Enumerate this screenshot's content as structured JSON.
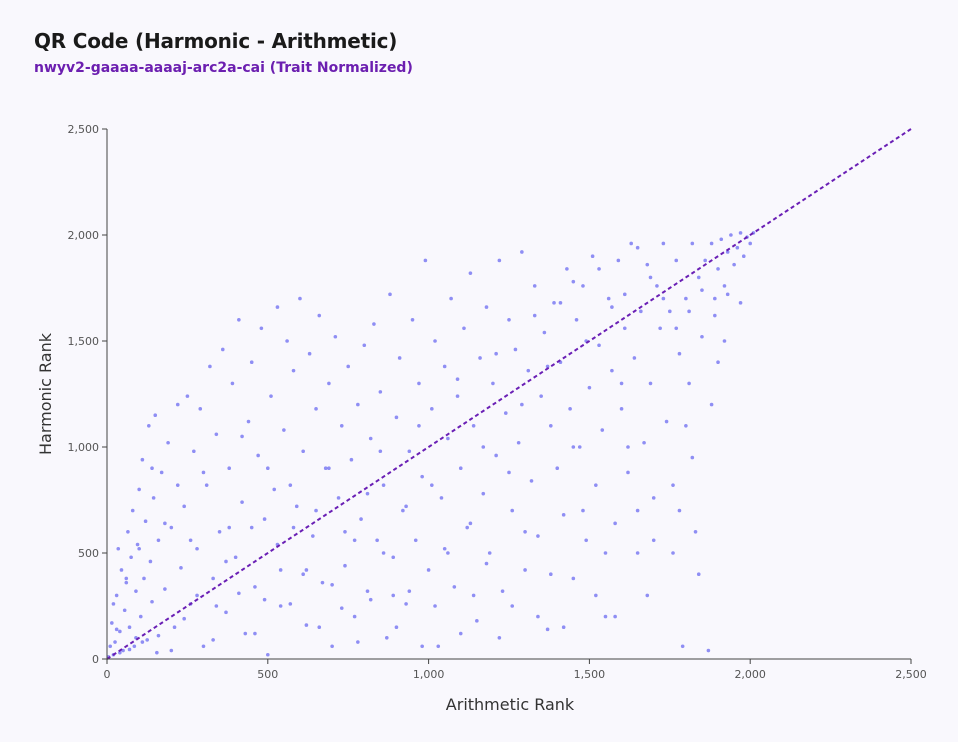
{
  "title": "QR Code (Harmonic - Arithmetic)",
  "subtitle": "nwyv2-gaaaa-aaaaj-arc2a-cai (Trait Normalized)",
  "colors": {
    "points": "#6b6bf0",
    "trend_line": "#6a1fb5",
    "axis": "#444444",
    "subtitle": "#6c1fb0"
  },
  "chart_data": {
    "type": "scatter",
    "xlabel": "Arithmetic Rank",
    "ylabel": "Harmonic Rank",
    "xlim": [
      0,
      2500
    ],
    "ylim": [
      0,
      2500
    ],
    "x_ticks": [
      "0",
      "500",
      "1,000",
      "1,500",
      "2,000",
      "2,500"
    ],
    "y_ticks": [
      "0",
      "500",
      "1,000",
      "1,500",
      "2,000",
      "2,500"
    ],
    "grid": false,
    "reference_line": {
      "from": [
        0,
        0
      ],
      "to": [
        2500,
        2500
      ],
      "style": "dashed"
    },
    "points_note": "~3000 points; representative sample",
    "points": [
      [
        5,
        10
      ],
      [
        15,
        170
      ],
      [
        20,
        260
      ],
      [
        25,
        80
      ],
      [
        30,
        300
      ],
      [
        35,
        520
      ],
      [
        40,
        130
      ],
      [
        45,
        420
      ],
      [
        50,
        40
      ],
      [
        55,
        230
      ],
      [
        60,
        360
      ],
      [
        65,
        600
      ],
      [
        70,
        150
      ],
      [
        75,
        480
      ],
      [
        80,
        700
      ],
      [
        85,
        60
      ],
      [
        90,
        320
      ],
      [
        95,
        540
      ],
      [
        100,
        800
      ],
      [
        105,
        200
      ],
      [
        110,
        940
      ],
      [
        115,
        380
      ],
      [
        120,
        650
      ],
      [
        125,
        90
      ],
      [
        130,
        1100
      ],
      [
        135,
        460
      ],
      [
        140,
        270
      ],
      [
        145,
        760
      ],
      [
        150,
        1150
      ],
      [
        155,
        30
      ],
      [
        160,
        560
      ],
      [
        170,
        880
      ],
      [
        180,
        330
      ],
      [
        190,
        1020
      ],
      [
        200,
        620
      ],
      [
        210,
        150
      ],
      [
        220,
        1200
      ],
      [
        230,
        430
      ],
      [
        240,
        720
      ],
      [
        250,
        1240
      ],
      [
        260,
        260
      ],
      [
        270,
        980
      ],
      [
        280,
        520
      ],
      [
        290,
        1180
      ],
      [
        300,
        60
      ],
      [
        310,
        820
      ],
      [
        320,
        1380
      ],
      [
        330,
        380
      ],
      [
        340,
        1060
      ],
      [
        350,
        600
      ],
      [
        360,
        1460
      ],
      [
        370,
        220
      ],
      [
        380,
        900
      ],
      [
        390,
        1300
      ],
      [
        400,
        480
      ],
      [
        410,
        1600
      ],
      [
        420,
        740
      ],
      [
        430,
        120
      ],
      [
        440,
        1120
      ],
      [
        450,
        1400
      ],
      [
        460,
        340
      ],
      [
        470,
        960
      ],
      [
        480,
        1560
      ],
      [
        490,
        660
      ],
      [
        500,
        20
      ],
      [
        510,
        1240
      ],
      [
        520,
        800
      ],
      [
        530,
        1660
      ],
      [
        540,
        420
      ],
      [
        550,
        1080
      ],
      [
        560,
        1500
      ],
      [
        570,
        260
      ],
      [
        580,
        1360
      ],
      [
        590,
        720
      ],
      [
        600,
        1700
      ],
      [
        610,
        980
      ],
      [
        620,
        160
      ],
      [
        630,
        1440
      ],
      [
        640,
        580
      ],
      [
        650,
        1180
      ],
      [
        660,
        1620
      ],
      [
        670,
        360
      ],
      [
        680,
        900
      ],
      [
        690,
        1300
      ],
      [
        700,
        60
      ],
      [
        710,
        1520
      ],
      [
        720,
        760
      ],
      [
        730,
        1100
      ],
      [
        740,
        440
      ],
      [
        750,
        1380
      ],
      [
        760,
        940
      ],
      [
        770,
        200
      ],
      [
        780,
        1200
      ],
      [
        790,
        660
      ],
      [
        800,
        1480
      ],
      [
        810,
        320
      ],
      [
        820,
        1040
      ],
      [
        830,
        1580
      ],
      [
        840,
        560
      ],
      [
        850,
        1260
      ],
      [
        860,
        820
      ],
      [
        870,
        100
      ],
      [
        880,
        1720
      ],
      [
        890,
        480
      ],
      [
        900,
        1140
      ],
      [
        910,
        1420
      ],
      [
        920,
        700
      ],
      [
        930,
        260
      ],
      [
        940,
        980
      ],
      [
        950,
        1600
      ],
      [
        960,
        560
      ],
      [
        970,
        1300
      ],
      [
        980,
        860
      ],
      [
        990,
        1880
      ],
      [
        1000,
        420
      ],
      [
        1010,
        1180
      ],
      [
        1020,
        1500
      ],
      [
        1030,
        60
      ],
      [
        1040,
        760
      ],
      [
        1050,
        1380
      ],
      [
        1060,
        1040
      ],
      [
        1070,
        1700
      ],
      [
        1080,
        340
      ],
      [
        1090,
        1240
      ],
      [
        1100,
        900
      ],
      [
        1110,
        1560
      ],
      [
        1120,
        620
      ],
      [
        1130,
        1820
      ],
      [
        1140,
        1100
      ],
      [
        1150,
        180
      ],
      [
        1160,
        1420
      ],
      [
        1170,
        780
      ],
      [
        1180,
        1660
      ],
      [
        1190,
        500
      ],
      [
        1200,
        1300
      ],
      [
        1210,
        960
      ],
      [
        1220,
        1880
      ],
      [
        1230,
        320
      ],
      [
        1240,
        1160
      ],
      [
        1250,
        1600
      ],
      [
        1260,
        700
      ],
      [
        1270,
        1460
      ],
      [
        1280,
        1020
      ],
      [
        1290,
        1920
      ],
      [
        1300,
        420
      ],
      [
        1310,
        1360
      ],
      [
        1320,
        840
      ],
      [
        1330,
        1760
      ],
      [
        1340,
        580
      ],
      [
        1350,
        1240
      ],
      [
        1360,
        1540
      ],
      [
        1370,
        140
      ],
      [
        1380,
        1100
      ],
      [
        1390,
        1680
      ],
      [
        1400,
        900
      ],
      [
        1410,
        1400
      ],
      [
        1420,
        680
      ],
      [
        1430,
        1840
      ],
      [
        1440,
        1180
      ],
      [
        1450,
        380
      ],
      [
        1460,
        1600
      ],
      [
        1470,
        1000
      ],
      [
        1480,
        1760
      ],
      [
        1490,
        560
      ],
      [
        1500,
        1280
      ],
      [
        1510,
        1900
      ],
      [
        1520,
        820
      ],
      [
        1530,
        1480
      ],
      [
        1540,
        1080
      ],
      [
        1550,
        200
      ],
      [
        1560,
        1700
      ],
      [
        1570,
        1360
      ],
      [
        1580,
        640
      ],
      [
        1590,
        1880
      ],
      [
        1600,
        1180
      ],
      [
        1610,
        1560
      ],
      [
        1620,
        880
      ],
      [
        1630,
        1960
      ],
      [
        1640,
        1420
      ],
      [
        1650,
        500
      ],
      [
        1660,
        1640
      ],
      [
        1670,
        1020
      ],
      [
        1680,
        1860
      ],
      [
        1690,
        1300
      ],
      [
        1700,
        760
      ],
      [
        1710,
        1760
      ],
      [
        1720,
        1560
      ],
      [
        1730,
        1960
      ],
      [
        1740,
        1120
      ],
      [
        1750,
        1640
      ],
      [
        1760,
        820
      ],
      [
        1770,
        1880
      ],
      [
        1780,
        1440
      ],
      [
        1790,
        60
      ],
      [
        1800,
        1700
      ],
      [
        1810,
        1300
      ],
      [
        1820,
        1960
      ],
      [
        1830,
        600
      ],
      [
        1840,
        1800
      ],
      [
        1850,
        1520
      ],
      [
        1860,
        1880
      ],
      [
        1870,
        40
      ],
      [
        1880,
        1960
      ],
      [
        1890,
        1700
      ],
      [
        1900,
        1840
      ],
      [
        1910,
        1980
      ],
      [
        1920,
        1760
      ],
      [
        1930,
        1920
      ],
      [
        1940,
        2000
      ],
      [
        1950,
        1860
      ],
      [
        1960,
        1940
      ],
      [
        1970,
        2010
      ],
      [
        1980,
        1900
      ],
      [
        1990,
        1990
      ],
      [
        2000,
        1960
      ],
      [
        2010,
        2010
      ],
      [
        1800,
        1100
      ],
      [
        1820,
        950
      ],
      [
        1780,
        700
      ],
      [
        1760,
        500
      ],
      [
        1840,
        400
      ],
      [
        1880,
        1200
      ],
      [
        1900,
        1400
      ],
      [
        1920,
        1500
      ],
      [
        1700,
        560
      ],
      [
        1680,
        300
      ],
      [
        1650,
        700
      ],
      [
        1620,
        1000
      ],
      [
        1600,
        1300
      ],
      [
        1580,
        200
      ],
      [
        1550,
        500
      ],
      [
        1520,
        300
      ],
      [
        1480,
        700
      ],
      [
        1450,
        1000
      ],
      [
        1420,
        150
      ],
      [
        1380,
        400
      ],
      [
        1340,
        200
      ],
      [
        1300,
        600
      ],
      [
        1260,
        250
      ],
      [
        1220,
        100
      ],
      [
        1180,
        450
      ],
      [
        1140,
        300
      ],
      [
        1100,
        120
      ],
      [
        1060,
        500
      ],
      [
        1020,
        250
      ],
      [
        980,
        60
      ],
      [
        940,
        320
      ],
      [
        900,
        150
      ],
      [
        860,
        500
      ],
      [
        820,
        280
      ],
      [
        780,
        80
      ],
      [
        740,
        600
      ],
      [
        700,
        350
      ],
      [
        660,
        150
      ],
      [
        620,
        420
      ],
      [
        580,
        620
      ],
      [
        540,
        250
      ],
      [
        500,
        900
      ],
      [
        460,
        120
      ],
      [
        420,
        1050
      ],
      [
        380,
        620
      ],
      [
        340,
        250
      ],
      [
        300,
        880
      ],
      [
        260,
        560
      ],
      [
        220,
        820
      ],
      [
        180,
        640
      ],
      [
        140,
        900
      ],
      [
        100,
        520
      ],
      [
        60,
        380
      ],
      [
        30,
        140
      ],
      [
        10,
        60
      ],
      [
        20,
        20
      ],
      [
        40,
        30
      ],
      [
        70,
        45
      ],
      [
        90,
        100
      ],
      [
        110,
        80
      ],
      [
        160,
        110
      ],
      [
        200,
        40
      ],
      [
        240,
        190
      ],
      [
        280,
        300
      ],
      [
        330,
        90
      ],
      [
        370,
        460
      ],
      [
        410,
        310
      ],
      [
        450,
        620
      ],
      [
        490,
        280
      ],
      [
        530,
        540
      ],
      [
        570,
        820
      ],
      [
        610,
        400
      ],
      [
        650,
        700
      ],
      [
        690,
        900
      ],
      [
        730,
        240
      ],
      [
        770,
        560
      ],
      [
        810,
        780
      ],
      [
        850,
        980
      ],
      [
        890,
        300
      ],
      [
        930,
        720
      ],
      [
        970,
        1100
      ],
      [
        1010,
        820
      ],
      [
        1050,
        520
      ],
      [
        1090,
        1320
      ],
      [
        1130,
        640
      ],
      [
        1170,
        1000
      ],
      [
        1210,
        1440
      ],
      [
        1250,
        880
      ],
      [
        1290,
        1200
      ],
      [
        1330,
        1620
      ],
      [
        1370,
        1380
      ],
      [
        1410,
        1680
      ],
      [
        1450,
        1780
      ],
      [
        1490,
        1500
      ],
      [
        1530,
        1840
      ],
      [
        1570,
        1660
      ],
      [
        1610,
        1720
      ],
      [
        1650,
        1940
      ],
      [
        1690,
        1800
      ],
      [
        1730,
        1700
      ],
      [
        1770,
        1560
      ],
      [
        1810,
        1640
      ],
      [
        1850,
        1740
      ],
      [
        1890,
        1620
      ],
      [
        1930,
        1720
      ],
      [
        1970,
        1680
      ]
    ]
  }
}
